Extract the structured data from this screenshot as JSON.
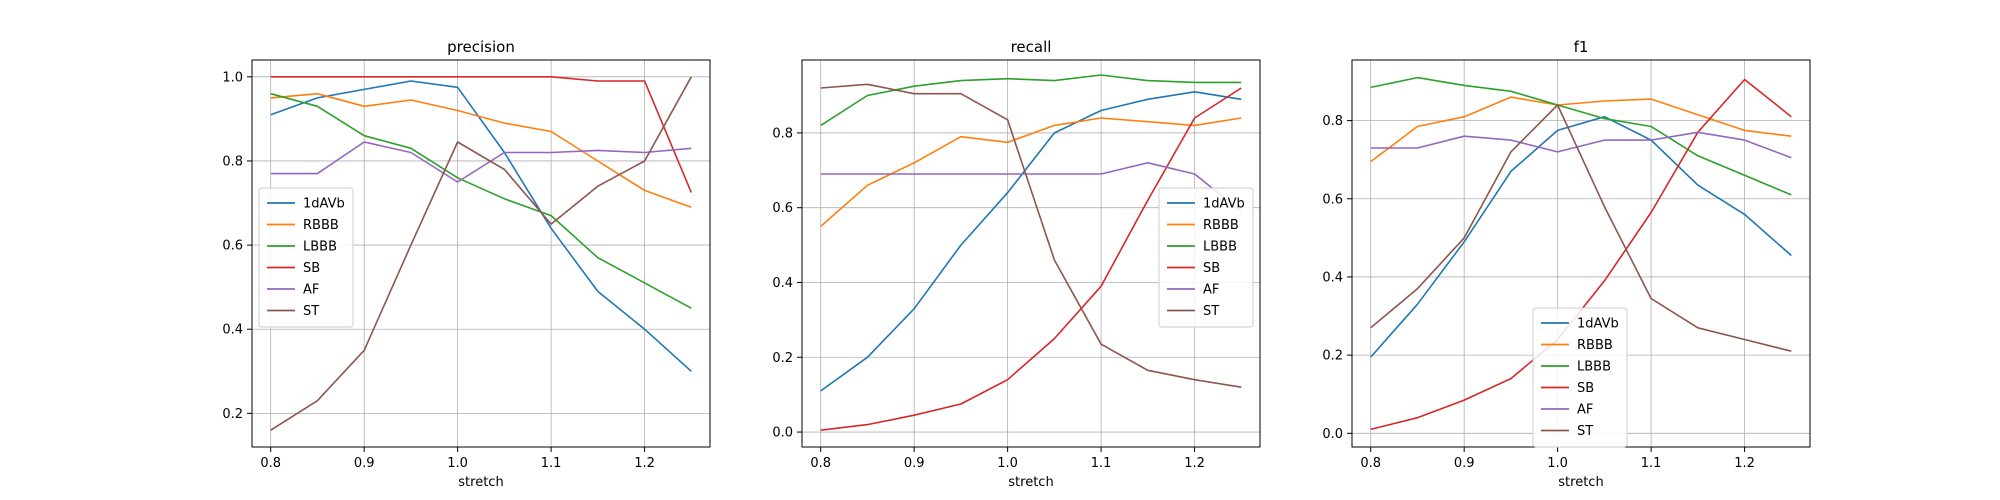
{
  "colors": {
    "1dAVb": "#1f77b4",
    "RBBB": "#ff7f0e",
    "LBBB": "#2ca02c",
    "SB": "#d62728",
    "AF": "#9467bd",
    "ST": "#8c564b"
  },
  "chart_data": [
    {
      "type": "line",
      "title": "precision",
      "xlabel": "stretch",
      "ylabel": "",
      "grid": true,
      "legend_placement": "center-left",
      "x": [
        0.8,
        0.85,
        0.9,
        0.95,
        1.0,
        1.05,
        1.1,
        1.15,
        1.2,
        1.25
      ],
      "xlim": [
        0.78,
        1.27
      ],
      "ylim": [
        0.12,
        1.04
      ],
      "xticks": [
        "0.8",
        "0.9",
        "1.0",
        "1.1",
        "1.2"
      ],
      "yticks": [
        "0.2",
        "0.4",
        "0.6",
        "0.8",
        "1.0"
      ],
      "series": [
        {
          "name": "1dAVb",
          "values": [
            0.91,
            0.95,
            0.97,
            0.99,
            0.975,
            0.82,
            0.64,
            0.49,
            0.4,
            0.3
          ]
        },
        {
          "name": "RBBB",
          "values": [
            0.95,
            0.96,
            0.93,
            0.945,
            0.92,
            0.89,
            0.87,
            0.8,
            0.73,
            0.69
          ]
        },
        {
          "name": "LBBB",
          "values": [
            0.96,
            0.93,
            0.86,
            0.83,
            0.76,
            0.71,
            0.67,
            0.57,
            0.51,
            0.45
          ]
        },
        {
          "name": "SB",
          "values": [
            1.0,
            1.0,
            1.0,
            1.0,
            1.0,
            1.0,
            1.0,
            0.99,
            0.99,
            0.725
          ]
        },
        {
          "name": "AF",
          "values": [
            0.77,
            0.77,
            0.845,
            0.82,
            0.75,
            0.82,
            0.82,
            0.825,
            0.82,
            0.83
          ]
        },
        {
          "name": "ST",
          "values": [
            0.16,
            0.23,
            0.35,
            0.6,
            0.845,
            0.78,
            0.65,
            0.74,
            0.8,
            1.0
          ]
        }
      ]
    },
    {
      "type": "line",
      "title": "recall",
      "xlabel": "stretch",
      "ylabel": "",
      "grid": true,
      "legend_placement": "center-right",
      "x": [
        0.8,
        0.85,
        0.9,
        0.95,
        1.0,
        1.05,
        1.1,
        1.15,
        1.2,
        1.25
      ],
      "xlim": [
        0.78,
        1.27
      ],
      "ylim": [
        -0.04,
        0.995
      ],
      "xticks": [
        "0.8",
        "0.9",
        "1.0",
        "1.1",
        "1.2"
      ],
      "yticks": [
        "0.0",
        "0.2",
        "0.4",
        "0.6",
        "0.8"
      ],
      "series": [
        {
          "name": "1dAVb",
          "values": [
            0.11,
            0.2,
            0.33,
            0.5,
            0.64,
            0.8,
            0.86,
            0.89,
            0.91,
            0.89
          ]
        },
        {
          "name": "RBBB",
          "values": [
            0.55,
            0.66,
            0.72,
            0.79,
            0.775,
            0.82,
            0.84,
            0.83,
            0.82,
            0.84
          ]
        },
        {
          "name": "LBBB",
          "values": [
            0.82,
            0.9,
            0.925,
            0.94,
            0.945,
            0.94,
            0.955,
            0.94,
            0.935,
            0.935
          ]
        },
        {
          "name": "SB",
          "values": [
            0.005,
            0.02,
            0.045,
            0.075,
            0.14,
            0.25,
            0.39,
            0.62,
            0.84,
            0.92
          ]
        },
        {
          "name": "AF",
          "values": [
            0.69,
            0.69,
            0.69,
            0.69,
            0.69,
            0.69,
            0.69,
            0.72,
            0.69,
            0.59
          ]
        },
        {
          "name": "ST",
          "values": [
            0.92,
            0.93,
            0.905,
            0.905,
            0.835,
            0.46,
            0.235,
            0.165,
            0.14,
            0.12
          ]
        }
      ]
    },
    {
      "type": "line",
      "title": "f1",
      "xlabel": "stretch",
      "ylabel": "",
      "grid": true,
      "legend_placement": "bottom-center",
      "x": [
        0.8,
        0.85,
        0.9,
        0.95,
        1.0,
        1.05,
        1.1,
        1.15,
        1.2,
        1.25
      ],
      "xlim": [
        0.78,
        1.27
      ],
      "ylim": [
        -0.035,
        0.955
      ],
      "xticks": [
        "0.8",
        "0.9",
        "1.0",
        "1.1",
        "1.2"
      ],
      "yticks": [
        "0.0",
        "0.2",
        "0.4",
        "0.6",
        "0.8"
      ],
      "series": [
        {
          "name": "1dAVb",
          "values": [
            0.195,
            0.33,
            0.49,
            0.67,
            0.775,
            0.81,
            0.75,
            0.635,
            0.56,
            0.455
          ]
        },
        {
          "name": "RBBB",
          "values": [
            0.695,
            0.785,
            0.81,
            0.86,
            0.84,
            0.85,
            0.855,
            0.815,
            0.775,
            0.76
          ]
        },
        {
          "name": "LBBB",
          "values": [
            0.885,
            0.91,
            0.89,
            0.875,
            0.84,
            0.805,
            0.785,
            0.71,
            0.66,
            0.61
          ]
        },
        {
          "name": "SB",
          "values": [
            0.01,
            0.04,
            0.085,
            0.14,
            0.24,
            0.39,
            0.565,
            0.77,
            0.905,
            0.81
          ]
        },
        {
          "name": "AF",
          "values": [
            0.73,
            0.73,
            0.76,
            0.75,
            0.72,
            0.75,
            0.75,
            0.77,
            0.75,
            0.705
          ]
        },
        {
          "name": "ST",
          "values": [
            0.27,
            0.37,
            0.5,
            0.72,
            0.84,
            0.58,
            0.345,
            0.27,
            0.24,
            0.21
          ]
        }
      ]
    }
  ]
}
